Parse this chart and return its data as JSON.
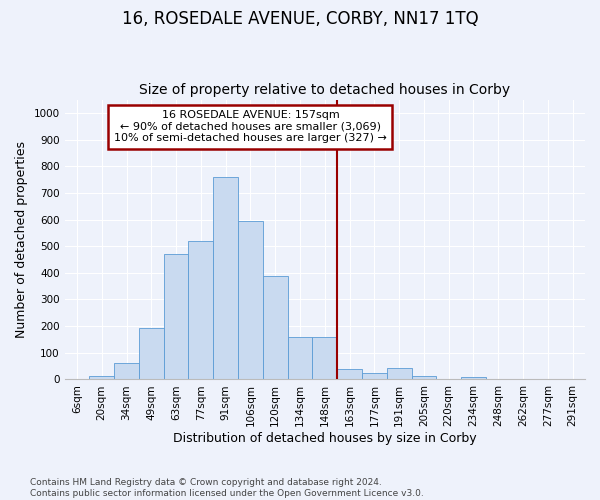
{
  "title": "16, ROSEDALE AVENUE, CORBY, NN17 1TQ",
  "subtitle": "Size of property relative to detached houses in Corby",
  "xlabel": "Distribution of detached houses by size in Corby",
  "ylabel": "Number of detached properties",
  "bar_labels": [
    "6sqm",
    "20sqm",
    "34sqm",
    "49sqm",
    "63sqm",
    "77sqm",
    "91sqm",
    "106sqm",
    "120sqm",
    "134sqm",
    "148sqm",
    "163sqm",
    "177sqm",
    "191sqm",
    "205sqm",
    "220sqm",
    "234sqm",
    "248sqm",
    "262sqm",
    "277sqm",
    "291sqm"
  ],
  "bar_values": [
    0,
    13,
    62,
    193,
    470,
    521,
    758,
    594,
    389,
    160,
    160,
    40,
    25,
    44,
    13,
    0,
    9,
    0,
    0,
    0,
    0
  ],
  "bar_color": "#c9daf0",
  "bar_edge_color": "#5b9bd5",
  "vline_x_index": 11,
  "vline_color": "#990000",
  "annotation_text": "16 ROSEDALE AVENUE: 157sqm\n← 90% of detached houses are smaller (3,069)\n10% of semi-detached houses are larger (327) →",
  "annotation_box_color": "#990000",
  "annotation_bg": "#ffffff",
  "ylim": [
    0,
    1050
  ],
  "yticks": [
    0,
    100,
    200,
    300,
    400,
    500,
    600,
    700,
    800,
    900,
    1000
  ],
  "footer": "Contains HM Land Registry data © Crown copyright and database right 2024.\nContains public sector information licensed under the Open Government Licence v3.0.",
  "bg_color": "#eef2fb",
  "grid_color": "#ffffff",
  "title_fontsize": 12,
  "subtitle_fontsize": 10,
  "axis_label_fontsize": 9,
  "tick_fontsize": 7.5,
  "footer_fontsize": 6.5
}
